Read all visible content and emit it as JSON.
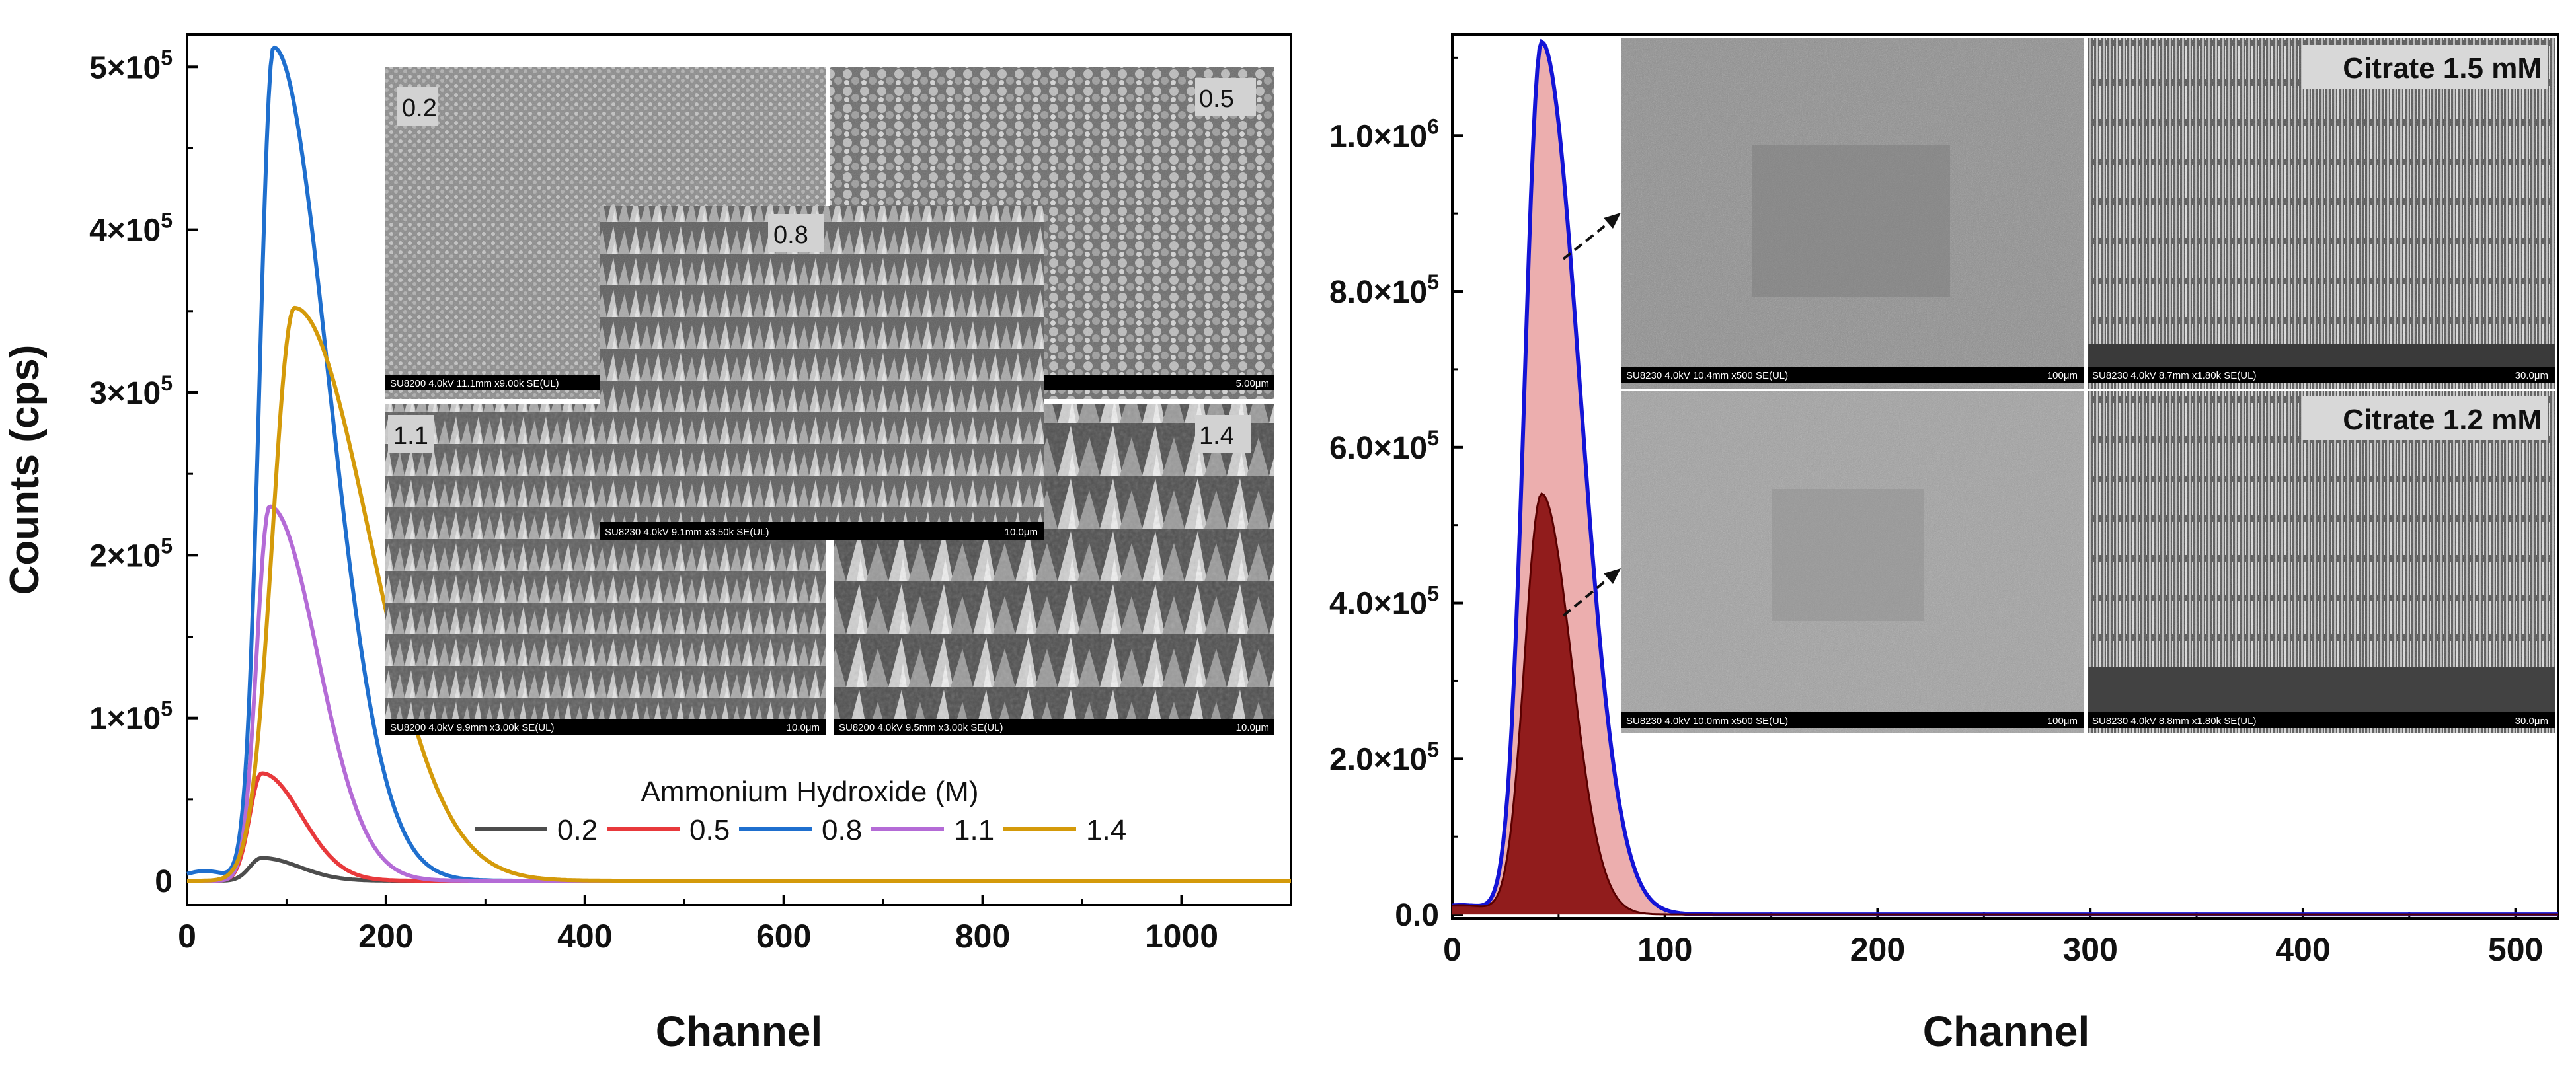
{
  "chart_data": [
    {
      "type": "line",
      "panel": "left",
      "title": "",
      "xlabel": "Channel",
      "ylabel": "Counts (cps)",
      "xlim": [
        0,
        1110
      ],
      "ylim": [
        -15000,
        520000
      ],
      "xticks": [
        0,
        200,
        400,
        600,
        800,
        1000
      ],
      "xtick_labels": [
        "0",
        "200",
        "400",
        "600",
        "800",
        "1000"
      ],
      "yticks": [
        0,
        100000,
        200000,
        300000,
        400000,
        500000
      ],
      "ytick_labels": [
        {
          "base": "0",
          "exp": ""
        },
        {
          "base": "1×10",
          "exp": "5"
        },
        {
          "base": "2×10",
          "exp": "5"
        },
        {
          "base": "3×10",
          "exp": "5"
        },
        {
          "base": "4×10",
          "exp": "5"
        },
        {
          "base": "5×10",
          "exp": "5"
        }
      ],
      "legend_title": "Ammonium Hydroxide (M)",
      "legend_position": "bottom-center",
      "series": [
        {
          "name": "0.2",
          "color": "#4d4d4d",
          "peak_x": 75,
          "peak_y": 14000,
          "rise": 12,
          "decay": 38
        },
        {
          "name": "0.5",
          "color": "#e8393c",
          "peak_x": 75,
          "peak_y": 66000,
          "rise": 12,
          "decay": 40
        },
        {
          "name": "0.8",
          "color": "#1f6fce",
          "peak_x": 87,
          "peak_y": 512000,
          "rise": 14,
          "decay": 55
        },
        {
          "name": "1.1",
          "color": "#b46bd6",
          "peak_x": 83,
          "peak_y": 230000,
          "rise": 13,
          "decay": 48
        },
        {
          "name": "1.4",
          "color": "#d49a0a",
          "peak_x": 108,
          "peak_y": 352000,
          "rise": 22,
          "decay": 75
        }
      ],
      "insets": [
        {
          "label": "0.2",
          "info": "SU8200 4.0kV 11.1mm x9.00k SE(UL)",
          "scale": ""
        },
        {
          "label": "0.5",
          "info": "",
          "scale": "5.00μm"
        },
        {
          "label": "0.8",
          "info": "SU8230 4.0kV 9.1mm x3.50k SE(UL)",
          "scale": "10.0μm"
        },
        {
          "label": "1.1",
          "info": "SU8200 4.0kV 9.9mm x3.00k SE(UL)",
          "scale": "10.0μm"
        },
        {
          "label": "1.4",
          "info": "SU8200 4.0kV 9.5mm x3.00k SE(UL)",
          "scale": "10.0μm"
        }
      ]
    },
    {
      "type": "area",
      "panel": "right",
      "title": "",
      "xlabel": "Channel",
      "ylabel": "",
      "xlim": [
        0,
        520
      ],
      "ylim": [
        -5000,
        1130000
      ],
      "xticks": [
        0,
        100,
        200,
        300,
        400,
        500
      ],
      "xtick_labels": [
        "0",
        "100",
        "200",
        "300",
        "400",
        "500"
      ],
      "yticks": [
        0,
        200000,
        400000,
        600000,
        800000,
        1000000
      ],
      "ytick_labels": [
        {
          "base": "0.0",
          "exp": ""
        },
        {
          "base": "2.0×10",
          "exp": "5"
        },
        {
          "base": "4.0×10",
          "exp": "5"
        },
        {
          "base": "6.0×10",
          "exp": "5"
        },
        {
          "base": "8.0×10",
          "exp": "5"
        },
        {
          "base": "1.0×10",
          "exp": "6"
        }
      ],
      "series": [
        {
          "name": "Citrate 1.5 mM",
          "fill": "#e9a0a0",
          "edge": "#1414d6",
          "peak_x": 42,
          "peak_y": 1120000,
          "rise": 8,
          "decay": 18
        },
        {
          "name": "Citrate 1.2 mM",
          "fill": "#8c1414",
          "edge": "#5a0000",
          "peak_x": 42,
          "peak_y": 540000,
          "rise": 8,
          "decay": 14
        }
      ],
      "insets": [
        {
          "label": "Citrate 1.5 mM",
          "left_info": "SU8230 4.0kV 10.4mm x500 SE(UL)",
          "left_scale": "100μm",
          "right_info": "SU8230 4.0kV 8.7mm x1.80k SE(UL)",
          "right_scale": "30.0μm"
        },
        {
          "label": "Citrate 1.2 mM",
          "left_info": "SU8230 4.0kV 10.0mm x500 SE(UL)",
          "left_scale": "100μm",
          "right_info": "SU8230 4.0kV 8.8mm x1.80k SE(UL)",
          "right_scale": "30.0μm"
        }
      ]
    }
  ]
}
